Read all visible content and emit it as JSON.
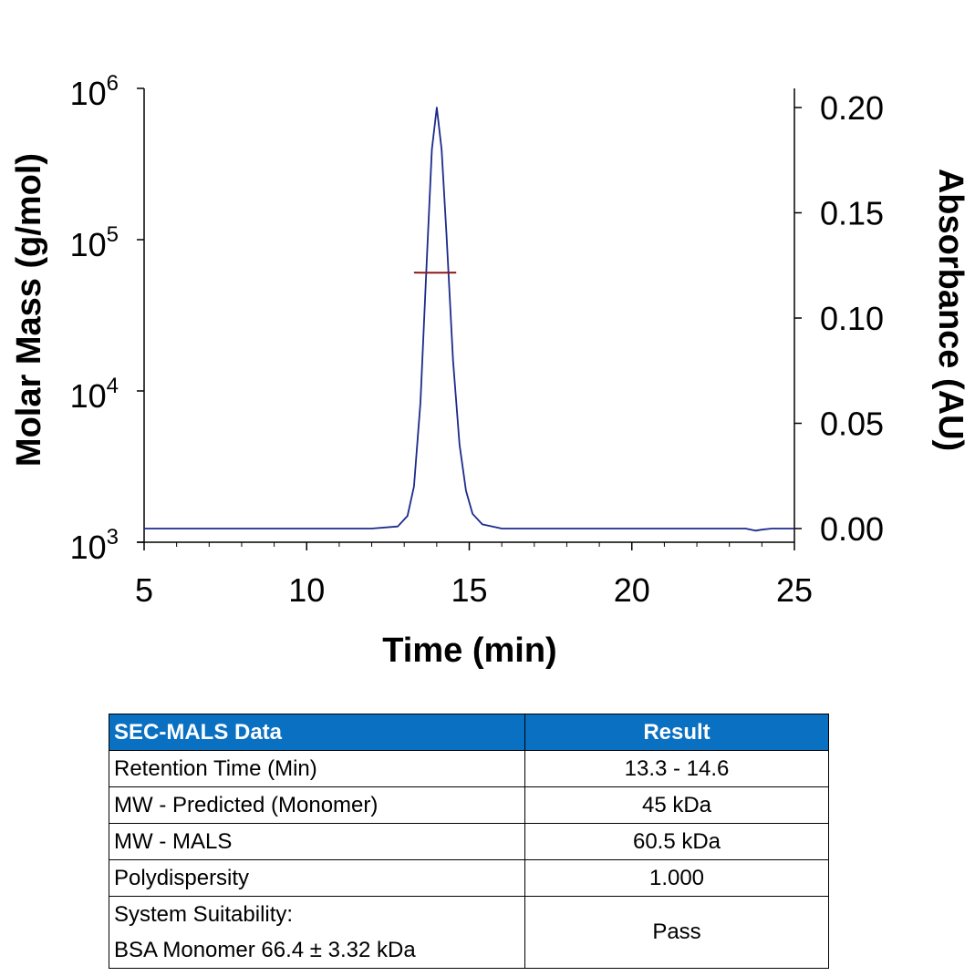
{
  "chart_data": {
    "type": "line",
    "xlabel": "Time (min)",
    "ylabel_left": "Molar Mass (g/mol)",
    "ylabel_right": "Absorbance (AU)",
    "xlim": [
      5,
      25
    ],
    "x_ticks": [
      5,
      10,
      15,
      20,
      25
    ],
    "y_left_scale": "log",
    "y_left_lim": [
      1000,
      1000000
    ],
    "y_left_ticks": [
      {
        "value": 1000,
        "base": "10",
        "exp": "3"
      },
      {
        "value": 10000,
        "base": "10",
        "exp": "4"
      },
      {
        "value": 100000,
        "base": "10",
        "exp": "5"
      },
      {
        "value": 1000000,
        "base": "10",
        "exp": "6"
      }
    ],
    "y_right_lim": [
      0.0,
      0.21
    ],
    "y_right_ticks": [
      "0.00",
      "0.05",
      "0.10",
      "0.15",
      "0.20"
    ],
    "grid": false,
    "series": [
      {
        "color": "#1c2a8c",
        "axis": "right",
        "x": [
          5,
          8,
          12,
          12.8,
          13.1,
          13.3,
          13.5,
          13.7,
          13.85,
          14.0,
          14.15,
          14.3,
          14.5,
          14.7,
          14.9,
          15.1,
          15.4,
          16,
          20,
          23.5,
          23.8,
          24.0,
          24.3,
          25
        ],
        "y": [
          0.0,
          0.0,
          0.0,
          0.001,
          0.006,
          0.02,
          0.06,
          0.13,
          0.18,
          0.2,
          0.18,
          0.14,
          0.08,
          0.04,
          0.018,
          0.007,
          0.002,
          0.0,
          0.0,
          0.0,
          -0.001,
          -0.0005,
          0.0,
          0.0
        ]
      },
      {
        "color": "#8b1a1a",
        "axis": "left",
        "x": [
          13.3,
          13.6,
          13.9,
          14.2,
          14.6
        ],
        "y": [
          60600,
          60500,
          60400,
          60500,
          60600
        ]
      }
    ]
  },
  "table": {
    "header_param": "SEC-MALS Data",
    "header_result": "Result",
    "rows": [
      {
        "param": "Retention Time (Min)",
        "result": "13.3 - 14.6"
      },
      {
        "param": "MW - Predicted (Monomer)",
        "result": "45 kDa"
      },
      {
        "param": "MW - MALS",
        "result": "60.5 kDa"
      },
      {
        "param": "Polydispersity",
        "result": "1.000"
      }
    ],
    "last_row": {
      "param_line1": "System Suitability:",
      "param_line2": "BSA Monomer 66.4 ± 3.32 kDa",
      "result": "Pass"
    }
  }
}
